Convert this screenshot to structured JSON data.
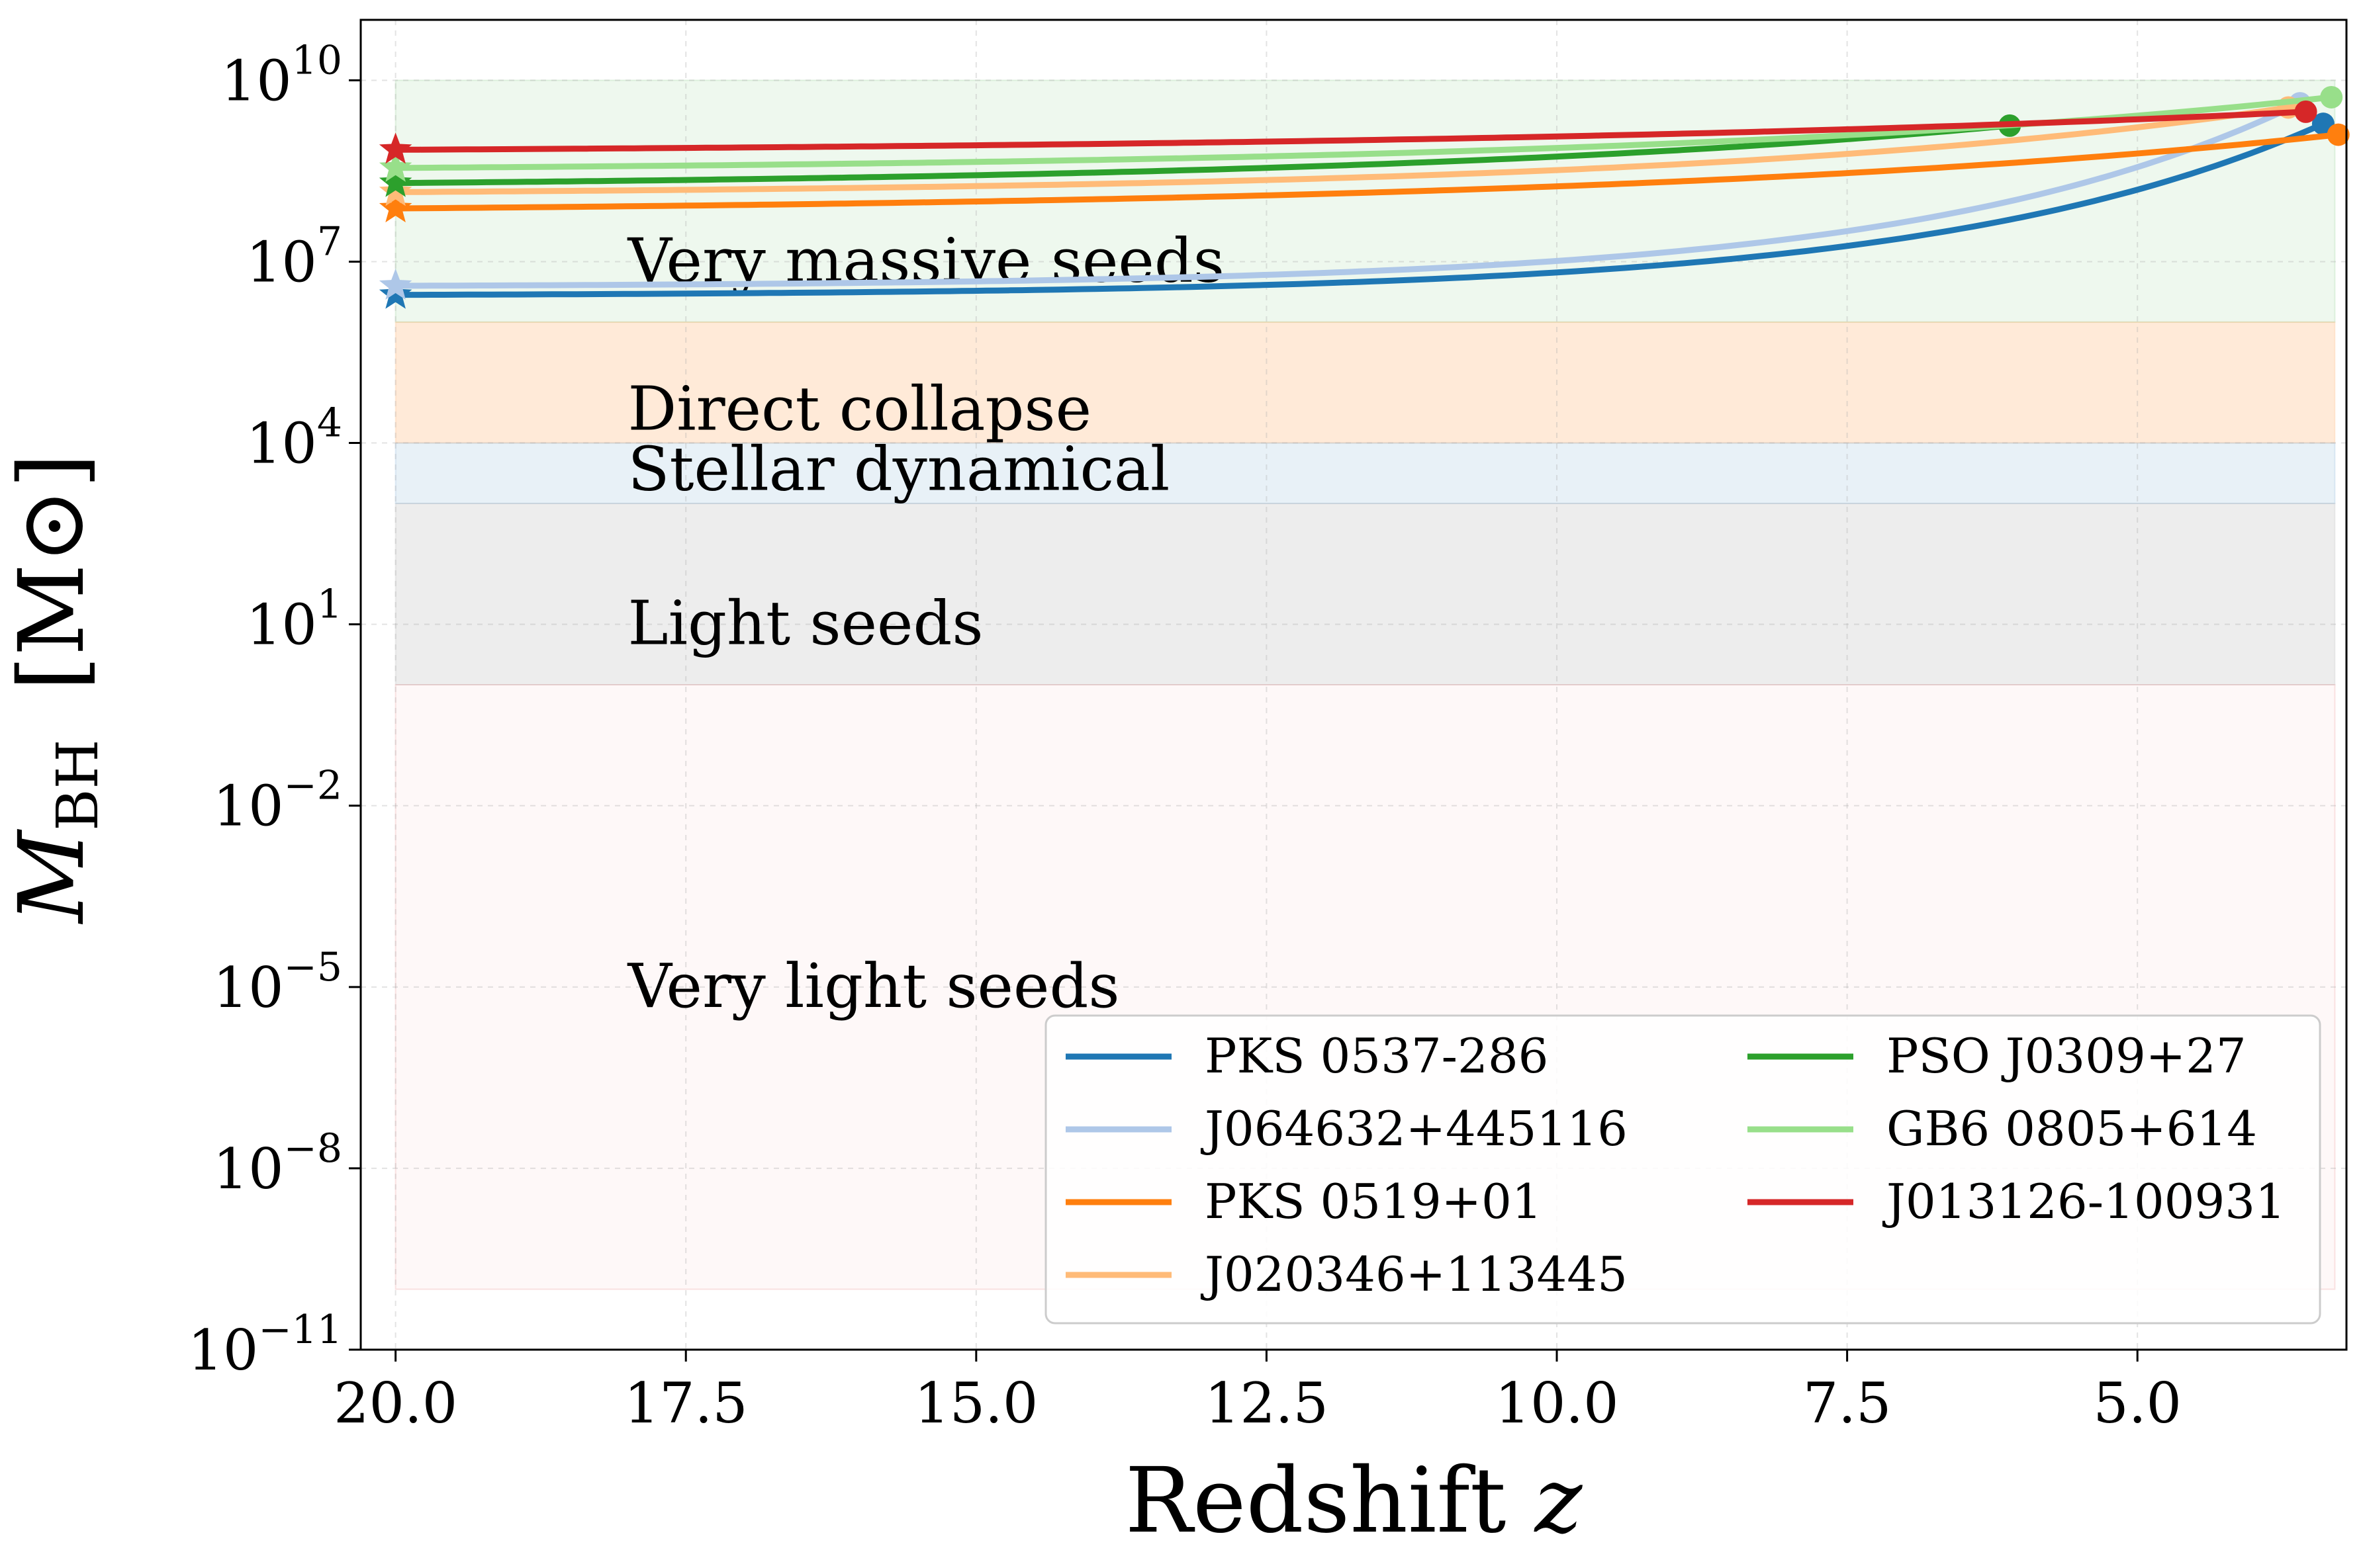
{
  "chart_data": {
    "type": "line",
    "title": "",
    "xlabel": "Redshift",
    "xlabel_var": "z",
    "ylabel_main": "M",
    "ylabel_sub": "BH",
    "ylabel_unit": "[M⊙]",
    "x_scale": "linear",
    "x_inverted": true,
    "xlim": [
      20.3,
      3.2
    ],
    "x_ticks": [
      20.0,
      17.5,
      15.0,
      12.5,
      10.0,
      7.5,
      5.0
    ],
    "x_tick_labels": [
      "20.0",
      "17.5",
      "15.0",
      "12.5",
      "10.0",
      "7.5",
      "5.0"
    ],
    "y_scale": "log10",
    "ylim_log10": [
      -11,
      11
    ],
    "y_ticks": [
      {
        "base": "10",
        "exp": "10",
        "log10": 10
      },
      {
        "base": "10",
        "exp": "7",
        "log10": 7
      },
      {
        "base": "10",
        "exp": "4",
        "log10": 4
      },
      {
        "base": "10",
        "exp": "1",
        "log10": 1
      },
      {
        "base": "10",
        "exp": "−2",
        "log10": -2
      },
      {
        "base": "10",
        "exp": "−5",
        "log10": -5
      },
      {
        "base": "10",
        "exp": "−8",
        "log10": -8
      },
      {
        "base": "10",
        "exp": "−11",
        "log10": -11
      }
    ],
    "grid": true,
    "legend_position": "lower-right",
    "legend_columns": 2,
    "bands": [
      {
        "label": "Very massive seeds",
        "log10_min": 6,
        "log10_max": 10,
        "color": "#2ca02c",
        "opacity": 0.08,
        "label_log10": 7
      },
      {
        "label": "Direct collapse",
        "log10_min": 4,
        "log10_max": 6,
        "color": "#ff7f0e",
        "opacity": 0.16,
        "label_log10": 4.55
      },
      {
        "label": "Stellar dynamical",
        "log10_min": 3,
        "log10_max": 4,
        "color": "#1f77b4",
        "opacity": 0.1,
        "label_log10": 3.55
      },
      {
        "label": "Light seeds",
        "log10_min": 0,
        "log10_max": 3,
        "color": "#7f7f7f",
        "opacity": 0.14,
        "label_log10": 1
      },
      {
        "label": "Very light seeds",
        "log10_min": -10,
        "log10_max": 0,
        "color": "#d62728",
        "opacity": 0.03,
        "label_log10": -5
      }
    ],
    "band_x_range": [
      20.0,
      3.3
    ],
    "band_label_x": 18.0,
    "series": [
      {
        "name": "PKS 0537-286",
        "color": "#1f77b4",
        "z_start": 20.0,
        "z_end": 3.4,
        "log10_start": 6.45,
        "log10_end": 9.28,
        "curve_k": 5.0
      },
      {
        "name": "J064632+445116",
        "color": "#aec7e8",
        "z_start": 20.0,
        "z_end": 3.6,
        "log10_start": 6.6,
        "log10_end": 9.62,
        "curve_k": 5.0
      },
      {
        "name": "PKS 0519+01",
        "color": "#ff7f0e",
        "z_start": 20.0,
        "z_end": 3.27,
        "log10_start": 7.88,
        "log10_end": 9.1,
        "curve_k": 2.6
      },
      {
        "name": "J020346+113445",
        "color": "#ffbb78",
        "z_start": 20.0,
        "z_end": 3.7,
        "log10_start": 8.15,
        "log10_end": 9.55,
        "curve_k": 3.2
      },
      {
        "name": "PSO J0309+27",
        "color": "#2ca02c",
        "z_start": 20.0,
        "z_end": 6.1,
        "log10_start": 8.3,
        "log10_end": 9.25,
        "curve_k": 2.4
      },
      {
        "name": "GB6 0805+614",
        "color": "#98df8a",
        "z_start": 20.0,
        "z_end": 3.33,
        "log10_start": 8.55,
        "log10_end": 9.72,
        "curve_k": 2.8
      },
      {
        "name": "J013126-100931",
        "color": "#d62728",
        "z_start": 20.0,
        "z_end": 3.55,
        "log10_start": 8.85,
        "log10_end": 9.48,
        "curve_k": 2.2
      }
    ],
    "legend_order": [
      "PKS 0537-286",
      "J064632+445116",
      "PKS 0519+01",
      "J020346+113445",
      "PSO J0309+27",
      "GB6 0805+614",
      "J013126-100931"
    ]
  }
}
